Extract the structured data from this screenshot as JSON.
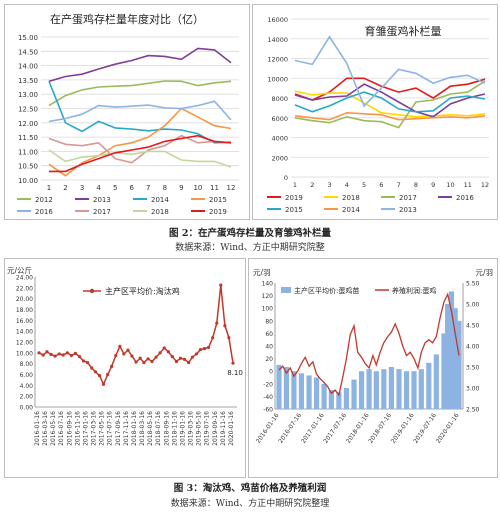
{
  "figure2": {
    "caption": "图 2：在产蛋鸡存栏量及育雏鸡补栏量",
    "source": "数据来源：Wind、方正中期研究院整"
  },
  "figure3": {
    "caption": "图 3：淘汰鸡、鸡苗价格及养殖利润",
    "source": "数据来源：Wind、方正中期研究院整理"
  },
  "chart_data": [
    {
      "id": "inventory",
      "type": "line",
      "title": "在产蛋鸡存栏量年度对比（亿）",
      "x": [
        1,
        2,
        3,
        4,
        5,
        6,
        7,
        8,
        9,
        10,
        11,
        12
      ],
      "ylim": [
        10.0,
        15.0
      ],
      "yticks": [
        "10.00",
        "10.50",
        "11.00",
        "11.50",
        "12.00",
        "12.50",
        "13.00",
        "13.50",
        "14.00",
        "14.50",
        "15.00"
      ],
      "grid": true,
      "legend_position": "bottom",
      "series": [
        {
          "name": "2012",
          "color": "#9bbb59",
          "values": [
            12.6,
            12.95,
            13.15,
            13.25,
            13.28,
            13.3,
            13.38,
            13.46,
            13.45,
            13.3,
            13.4,
            13.45
          ]
        },
        {
          "name": "2013",
          "color": "#7f3f98",
          "values": [
            13.45,
            13.62,
            13.7,
            13.88,
            14.05,
            14.18,
            14.35,
            14.32,
            14.22,
            14.6,
            14.55,
            14.1
          ]
        },
        {
          "name": "2014",
          "color": "#2aa7c9",
          "values": [
            13.45,
            12.0,
            11.7,
            12.05,
            11.82,
            11.78,
            11.72,
            11.78,
            11.75,
            11.62,
            11.3,
            11.32
          ]
        },
        {
          "name": "2015",
          "color": "#f79646",
          "values": [
            10.55,
            10.15,
            10.6,
            10.85,
            11.2,
            11.3,
            11.5,
            11.9,
            12.5,
            12.2,
            11.9,
            11.8
          ]
        },
        {
          "name": "2016",
          "color": "#8eb4e3",
          "values": [
            12.05,
            12.15,
            12.3,
            12.6,
            12.55,
            12.58,
            12.62,
            12.52,
            12.5,
            12.6,
            12.75,
            12.1
          ]
        },
        {
          "name": "2017",
          "color": "#d99694",
          "values": [
            11.45,
            11.25,
            11.2,
            11.3,
            10.75,
            10.6,
            11.05,
            11.2,
            11.55,
            11.3,
            11.35,
            11.3
          ]
        },
        {
          "name": "2018",
          "color": "#c4d79b",
          "values": [
            11.05,
            10.65,
            10.8,
            10.85,
            10.95,
            10.9,
            11.0,
            11.0,
            10.7,
            10.65,
            10.65,
            10.45
          ]
        },
        {
          "name": "2019",
          "color": "#e31a1c",
          "values": [
            10.3,
            10.3,
            10.55,
            10.75,
            10.95,
            11.05,
            11.15,
            11.35,
            11.45,
            11.55,
            11.35,
            11.3
          ]
        }
      ]
    },
    {
      "id": "restock",
      "type": "line",
      "title": "育雏蛋鸡补栏量",
      "x": [
        1,
        2,
        3,
        4,
        5,
        6,
        7,
        8,
        9,
        10,
        11,
        12
      ],
      "ylim": [
        0,
        16000
      ],
      "yticks": [
        "0",
        "2000",
        "4000",
        "6000",
        "8000",
        "10000",
        "12000",
        "14000",
        "16000"
      ],
      "grid": true,
      "legend_position": "bottom",
      "series": [
        {
          "name": "2019",
          "color": "#e31a1c",
          "values": [
            8400,
            7800,
            8600,
            10000,
            10000,
            9200,
            8600,
            9000,
            8000,
            9200,
            9400,
            9900
          ]
        },
        {
          "name": "2018",
          "color": "#ffd700",
          "values": [
            8700,
            8300,
            8500,
            8500,
            7500,
            6500,
            6300,
            6100,
            6200,
            6300,
            6200,
            6400
          ]
        },
        {
          "name": "2017",
          "color": "#9bbb59",
          "values": [
            6000,
            5700,
            5500,
            6100,
            5700,
            5600,
            5000,
            7600,
            7800,
            8400,
            8600,
            9700
          ]
        },
        {
          "name": "2016",
          "color": "#7f3f98",
          "values": [
            8300,
            7800,
            8100,
            8200,
            9400,
            8600,
            7600,
            6600,
            6100,
            7400,
            8000,
            8400
          ]
        },
        {
          "name": "2015",
          "color": "#2aa7c9",
          "values": [
            7300,
            6600,
            7200,
            8000,
            8600,
            8000,
            6900,
            6600,
            6700,
            8000,
            8200,
            7900
          ]
        },
        {
          "name": "2014",
          "color": "#f79646",
          "values": [
            6200,
            6000,
            5800,
            6500,
            6400,
            6300,
            5800,
            5900,
            6000,
            6100,
            6000,
            6200
          ]
        },
        {
          "name": "2013",
          "color": "#8eb4e3",
          "values": [
            11800,
            11400,
            14200,
            11500,
            7200,
            9000,
            10900,
            10500,
            9500,
            10100,
            10300,
            9500
          ]
        }
      ]
    },
    {
      "id": "culled",
      "type": "line",
      "ylabel": "元/公斤",
      "legend": "主产区平均价:淘汰鸡",
      "end_label": "8.10",
      "ylim": [
        0,
        24
      ],
      "yticks": [
        "0.00",
        "2.00",
        "4.00",
        "6.00",
        "8.00",
        "10.00",
        "12.00",
        "14.00",
        "16.00",
        "18.00",
        "20.00",
        "22.00",
        "24.00"
      ],
      "x": [
        "2016-01-16",
        "2016-03-16",
        "2016-05-16",
        "2016-07-16",
        "2016-09-16",
        "2016-11-16",
        "2017-01-16",
        "2017-03-16",
        "2017-05-16",
        "2017-07-16",
        "2017-09-16",
        "2017-11-16",
        "2018-01-16",
        "2018-03-16",
        "2018-05-16",
        "2018-07-16",
        "2018-09-16",
        "2018-11-16",
        "2019-01-16",
        "2019-03-16",
        "2019-05-16",
        "2019-07-16",
        "2019-09-16",
        "2019-11-16",
        "2020-01-16"
      ],
      "color": "#c0392b",
      "points": [
        [
          "2016-01-16",
          10.0
        ],
        [
          "2016-02-16",
          9.6
        ],
        [
          "2016-03-16",
          10.2
        ],
        [
          "2016-04-16",
          9.7
        ],
        [
          "2016-05-16",
          9.4
        ],
        [
          "2016-06-16",
          9.8
        ],
        [
          "2016-07-16",
          9.6
        ],
        [
          "2016-08-16",
          10.0
        ],
        [
          "2016-09-16",
          9.5
        ],
        [
          "2016-10-16",
          9.9
        ],
        [
          "2016-11-16",
          9.3
        ],
        [
          "2016-12-16",
          8.5
        ],
        [
          "2017-01-16",
          8.2
        ],
        [
          "2017-02-16",
          7.2
        ],
        [
          "2017-03-16",
          6.5
        ],
        [
          "2017-04-16",
          5.8
        ],
        [
          "2017-05-16",
          4.2
        ],
        [
          "2017-06-16",
          6.0
        ],
        [
          "2017-07-16",
          7.5
        ],
        [
          "2017-08-16",
          9.5
        ],
        [
          "2017-09-16",
          11.2
        ],
        [
          "2017-10-16",
          9.8
        ],
        [
          "2017-11-16",
          10.5
        ],
        [
          "2017-12-16",
          9.4
        ],
        [
          "2018-01-16",
          8.3
        ],
        [
          "2018-02-16",
          9.0
        ],
        [
          "2018-03-16",
          8.2
        ],
        [
          "2018-04-16",
          8.9
        ],
        [
          "2018-05-16",
          8.4
        ],
        [
          "2018-06-16",
          9.2
        ],
        [
          "2018-07-16",
          10.0
        ],
        [
          "2018-08-16",
          10.9
        ],
        [
          "2018-09-16",
          10.2
        ],
        [
          "2018-10-16",
          9.3
        ],
        [
          "2018-11-16",
          8.4
        ],
        [
          "2018-12-16",
          9.0
        ],
        [
          "2019-01-16",
          8.8
        ],
        [
          "2019-02-16",
          8.2
        ],
        [
          "2019-03-16",
          9.2
        ],
        [
          "2019-04-16",
          9.8
        ],
        [
          "2019-05-16",
          10.6
        ],
        [
          "2019-06-16",
          10.8
        ],
        [
          "2019-07-16",
          11.0
        ],
        [
          "2019-08-16",
          12.8
        ],
        [
          "2019-09-16",
          15.5
        ],
        [
          "2019-10-16",
          22.5
        ],
        [
          "2019-11-16",
          15.0
        ],
        [
          "2019-12-16",
          12.8
        ],
        [
          "2020-01-16",
          8.1
        ]
      ]
    },
    {
      "id": "chick_profit",
      "type": "bar+line",
      "left_unit": "元/羽",
      "right_unit": "元/羽",
      "bar_legend": "主产区平均价:蛋鸡苗",
      "line_legend": "养殖利润:蛋鸡",
      "left_ylim": [
        -60,
        140
      ],
      "left_yticks": [
        "-60",
        "-40",
        "-20",
        "0",
        "20",
        "40",
        "60",
        "80",
        "100",
        "120",
        "140"
      ],
      "right_ylim": [
        2.5,
        5.5
      ],
      "right_yticks": [
        "2.50",
        "3.00",
        "3.50",
        "4.00",
        "4.50",
        "5.00",
        "5.50"
      ],
      "x": [
        "2016-01-16",
        "2016-07-16",
        "2017-01-16",
        "2017-07-16",
        "2018-01-16",
        "2018-07-16",
        "2019-01-16",
        "2019-07-16",
        "2020-01-16"
      ],
      "bar_color": "#8db3e2",
      "line_color": "#c0392b",
      "line_points": [
        [
          "2016-01-16",
          2
        ],
        [
          "2016-02-16",
          8
        ],
        [
          "2016-03-16",
          -3
        ],
        [
          "2016-04-16",
          5
        ],
        [
          "2016-05-16",
          -8
        ],
        [
          "2016-06-16",
          0
        ],
        [
          "2016-07-16",
          12
        ],
        [
          "2016-08-16",
          22
        ],
        [
          "2016-09-16",
          8
        ],
        [
          "2016-10-16",
          15
        ],
        [
          "2016-11-16",
          -5
        ],
        [
          "2016-12-16",
          -12
        ],
        [
          "2017-01-16",
          -18
        ],
        [
          "2017-02-16",
          -25
        ],
        [
          "2017-03-16",
          -35
        ],
        [
          "2017-04-16",
          -30
        ],
        [
          "2017-05-16",
          -38
        ],
        [
          "2017-06-16",
          -10
        ],
        [
          "2017-07-16",
          20
        ],
        [
          "2017-08-16",
          58
        ],
        [
          "2017-09-16",
          72
        ],
        [
          "2017-10-16",
          30
        ],
        [
          "2017-11-16",
          22
        ],
        [
          "2017-12-16",
          12
        ],
        [
          "2018-01-16",
          5
        ],
        [
          "2018-02-16",
          25
        ],
        [
          "2018-03-16",
          10
        ],
        [
          "2018-04-16",
          30
        ],
        [
          "2018-05-16",
          45
        ],
        [
          "2018-06-16",
          55
        ],
        [
          "2018-07-16",
          62
        ],
        [
          "2018-08-16",
          75
        ],
        [
          "2018-09-16",
          60
        ],
        [
          "2018-10-16",
          40
        ],
        [
          "2018-11-16",
          25
        ],
        [
          "2018-12-16",
          30
        ],
        [
          "2019-01-16",
          20
        ],
        [
          "2019-02-16",
          5
        ],
        [
          "2019-03-16",
          30
        ],
        [
          "2019-04-16",
          45
        ],
        [
          "2019-05-16",
          50
        ],
        [
          "2019-06-16",
          45
        ],
        [
          "2019-07-16",
          55
        ],
        [
          "2019-08-16",
          85
        ],
        [
          "2019-09-16",
          110
        ],
        [
          "2019-10-16",
          122
        ],
        [
          "2019-11-16",
          95
        ],
        [
          "2019-12-16",
          60
        ],
        [
          "2020-01-16",
          25
        ]
      ],
      "bar_points": [
        [
          "2016-01-16",
          3.55
        ],
        [
          "2016-03-16",
          3.5
        ],
        [
          "2016-05-16",
          3.4
        ],
        [
          "2016-07-16",
          3.35
        ],
        [
          "2016-09-16",
          3.3
        ],
        [
          "2016-11-16",
          3.25
        ],
        [
          "2017-01-16",
          3.1
        ],
        [
          "2017-03-16",
          2.95
        ],
        [
          "2017-05-16",
          2.9
        ],
        [
          "2017-07-16",
          3.0
        ],
        [
          "2017-09-16",
          3.2
        ],
        [
          "2017-11-16",
          3.4
        ],
        [
          "2018-01-16",
          3.45
        ],
        [
          "2018-03-16",
          3.4
        ],
        [
          "2018-05-16",
          3.45
        ],
        [
          "2018-07-16",
          3.5
        ],
        [
          "2018-09-16",
          3.45
        ],
        [
          "2018-11-16",
          3.4
        ],
        [
          "2019-01-16",
          3.4
        ],
        [
          "2019-03-16",
          3.45
        ],
        [
          "2019-05-16",
          3.6
        ],
        [
          "2019-07-16",
          3.8
        ],
        [
          "2019-09-16",
          4.3
        ],
        [
          "2019-10-16",
          5.0
        ],
        [
          "2019-11-16",
          5.3
        ],
        [
          "2019-12-16",
          4.9
        ],
        [
          "2020-01-16",
          4.6
        ]
      ]
    }
  ]
}
